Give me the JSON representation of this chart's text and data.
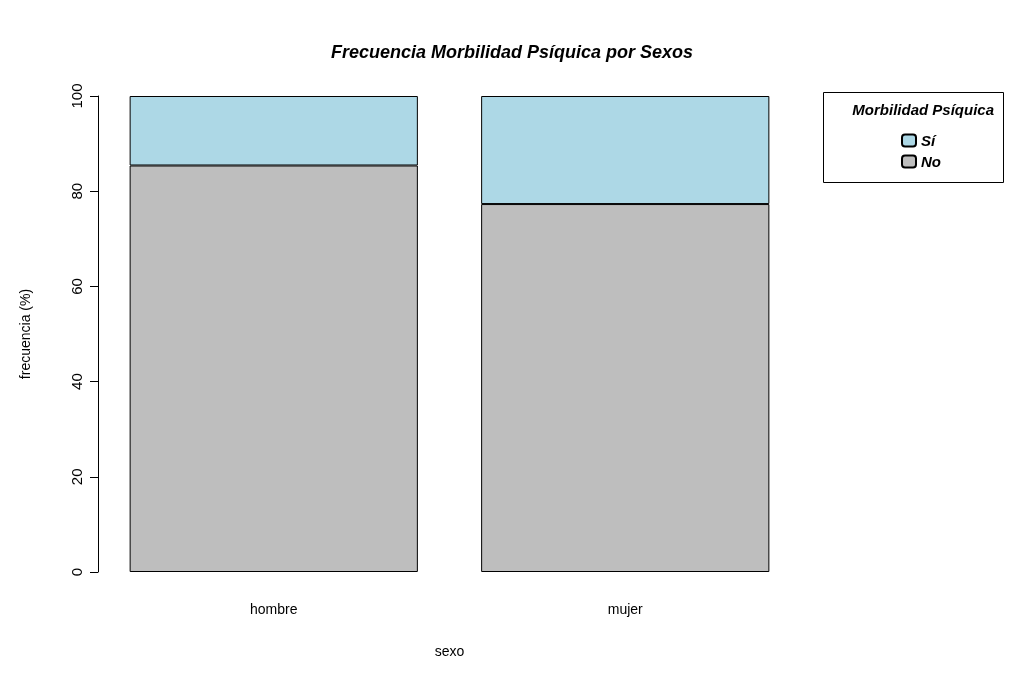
{
  "chart_data": {
    "type": "bar",
    "title": "Frecuencia Morbilidad Psíquica por Sexos",
    "xlabel": "sexo",
    "ylabel": "frecuencia (%)",
    "legend_title": "Morbilidad Psíquica",
    "categories": [
      "hombre",
      "mujer"
    ],
    "stacked": true,
    "series": [
      {
        "name": "No",
        "color": "#bebebe",
        "values": [
          85.4,
          77.3
        ]
      },
      {
        "name": "Sí",
        "color": "#add8e6",
        "values": [
          14.6,
          22.7
        ]
      }
    ],
    "ylim": [
      0,
      100
    ],
    "yticks": [
      0,
      20,
      40,
      60,
      80,
      100
    ],
    "legend": "top right"
  }
}
